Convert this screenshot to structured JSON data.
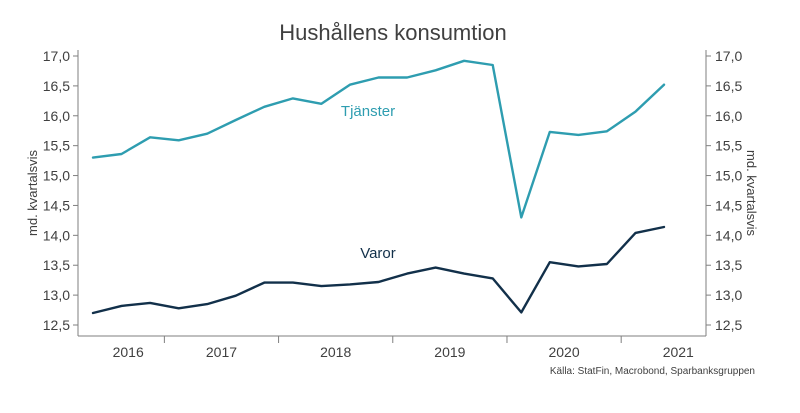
{
  "chart_data": {
    "type": "line",
    "title": "Hushållens konsumtion",
    "ylabel_left": "md. kvartalsvis",
    "ylabel_right": "md. kvartalsvis",
    "ylim": [
      12.5,
      17.0
    ],
    "yticks": [
      "12,5",
      "13,0",
      "13,5",
      "14,0",
      "14,5",
      "15,0",
      "15,5",
      "16,0",
      "16,5",
      "17,0"
    ],
    "year_labels": [
      "2016",
      "2017",
      "2018",
      "2019",
      "2020",
      "2021"
    ],
    "grid": false,
    "source": "Källa: StatFin, Macrobond, Sparbanksgruppen",
    "colors": {
      "tjanster": "#2e9db0",
      "varor": "#12304a"
    },
    "series": [
      {
        "name": "Tjänster",
        "values": [
          15.3,
          15.36,
          15.64,
          15.59,
          15.7,
          15.93,
          16.15,
          16.29,
          16.2,
          16.52,
          16.64,
          16.64,
          16.76,
          16.92,
          16.85,
          14.3,
          15.73,
          15.68,
          15.74,
          16.07,
          16.52
        ]
      },
      {
        "name": "Varor",
        "values": [
          12.7,
          12.82,
          12.87,
          12.78,
          12.85,
          12.99,
          13.21,
          13.21,
          13.15,
          13.18,
          13.22,
          13.36,
          13.46,
          13.36,
          13.28,
          12.71,
          13.55,
          13.48,
          13.52,
          14.04,
          14.14
        ]
      }
    ]
  }
}
